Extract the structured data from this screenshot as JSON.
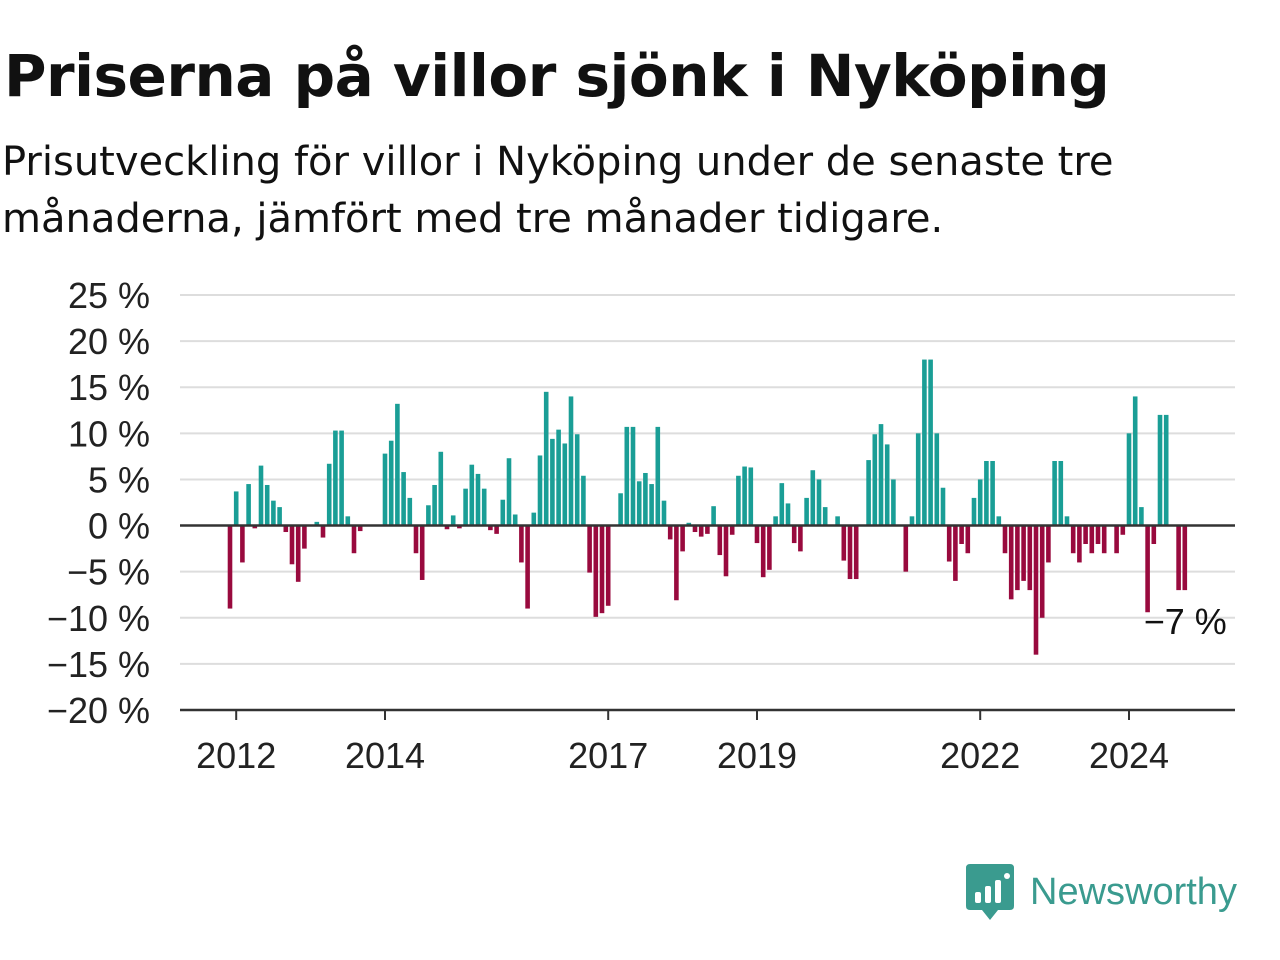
{
  "title": "Priserna på villor sjönk i Nyköping",
  "subtitle": "Prisutveckling för villor i Nyköping under de senaste tre månaderna, jämfört med tre månader tidigare.",
  "brand": {
    "name": "Newsworthy"
  },
  "colors": {
    "positive": "#1a9e96",
    "negative": "#990a3e",
    "grid": "#dddddd",
    "axis": "#333333",
    "brand": "#3a9b8f"
  },
  "chart_data": {
    "type": "bar",
    "title": "Priserna på villor sjönk i Nyköping",
    "xlabel": "",
    "ylabel": "",
    "ylim": [
      -20,
      25
    ],
    "yticks": [
      25,
      20,
      15,
      10,
      5,
      0,
      -5,
      -10,
      -15,
      -20
    ],
    "ytick_labels": [
      "25 %",
      "20 %",
      "15 %",
      "10 %",
      "5 %",
      "0 %",
      "−5 %",
      "−10 %",
      "−15 %",
      "−20 %"
    ],
    "xticks": [
      "2012",
      "2014",
      "2017",
      "2019",
      "2022",
      "2024"
    ],
    "grid": true,
    "period": "monthly, 2011-12 to 2025-02",
    "annotation": "−7 %",
    "values": [
      -9.0,
      3.7,
      -4.0,
      4.5,
      -0.3,
      6.5,
      4.4,
      2.7,
      2.0,
      -0.7,
      -4.2,
      -6.1,
      -2.5,
      0.0,
      0.4,
      -1.3,
      6.7,
      10.3,
      10.3,
      1.0,
      -3.0,
      -0.6,
      0.0,
      0.0,
      0.0,
      7.8,
      9.2,
      13.2,
      5.8,
      3.0,
      -3.0,
      -5.9,
      2.2,
      4.4,
      8.0,
      -0.4,
      1.1,
      -0.3,
      4.0,
      6.6,
      5.6,
      4.0,
      -0.5,
      -0.9,
      2.8,
      7.3,
      1.2,
      -4.0,
      -9.0,
      1.4,
      7.6,
      14.5,
      9.4,
      10.4,
      8.9,
      14.0,
      9.9,
      5.4,
      -5.1,
      -9.9,
      -9.5,
      -8.7,
      0.0,
      3.5,
      10.7,
      10.7,
      4.8,
      5.7,
      4.5,
      10.7,
      2.7,
      -1.5,
      -8.1,
      -2.8,
      0.3,
      -0.7,
      -1.2,
      -0.9,
      2.1,
      -3.2,
      -5.5,
      -1.0,
      5.4,
      6.4,
      6.3,
      -1.9,
      -5.6,
      -4.8,
      1.0,
      4.6,
      2.4,
      -1.9,
      -2.8,
      3.0,
      6.0,
      5.0,
      2.0,
      0.0,
      1.0,
      -3.8,
      -5.8,
      -5.8,
      0.0,
      7.1,
      9.9,
      11.0,
      8.8,
      5.0,
      0.0,
      -5.0,
      1.0,
      10.0,
      18.0,
      18.0,
      10.0,
      4.1,
      -3.9,
      -6.0,
      -2.0,
      -3.0,
      3.0,
      5.0,
      7.0,
      7.0,
      1.0,
      -3.0,
      -8.0,
      -7.0,
      -6.0,
      -7.0,
      -14.0,
      -10.0,
      -4.0,
      7.0,
      7.0,
      1.0,
      -3.0,
      -4.0,
      -2.0,
      -3.0,
      -2.0,
      -3.0,
      0.0,
      -3.0,
      -1.0,
      10.0,
      14.0,
      2.0,
      -9.4,
      -2.0,
      12.0,
      12.0,
      0.0,
      -7.0,
      -7.0
    ]
  }
}
